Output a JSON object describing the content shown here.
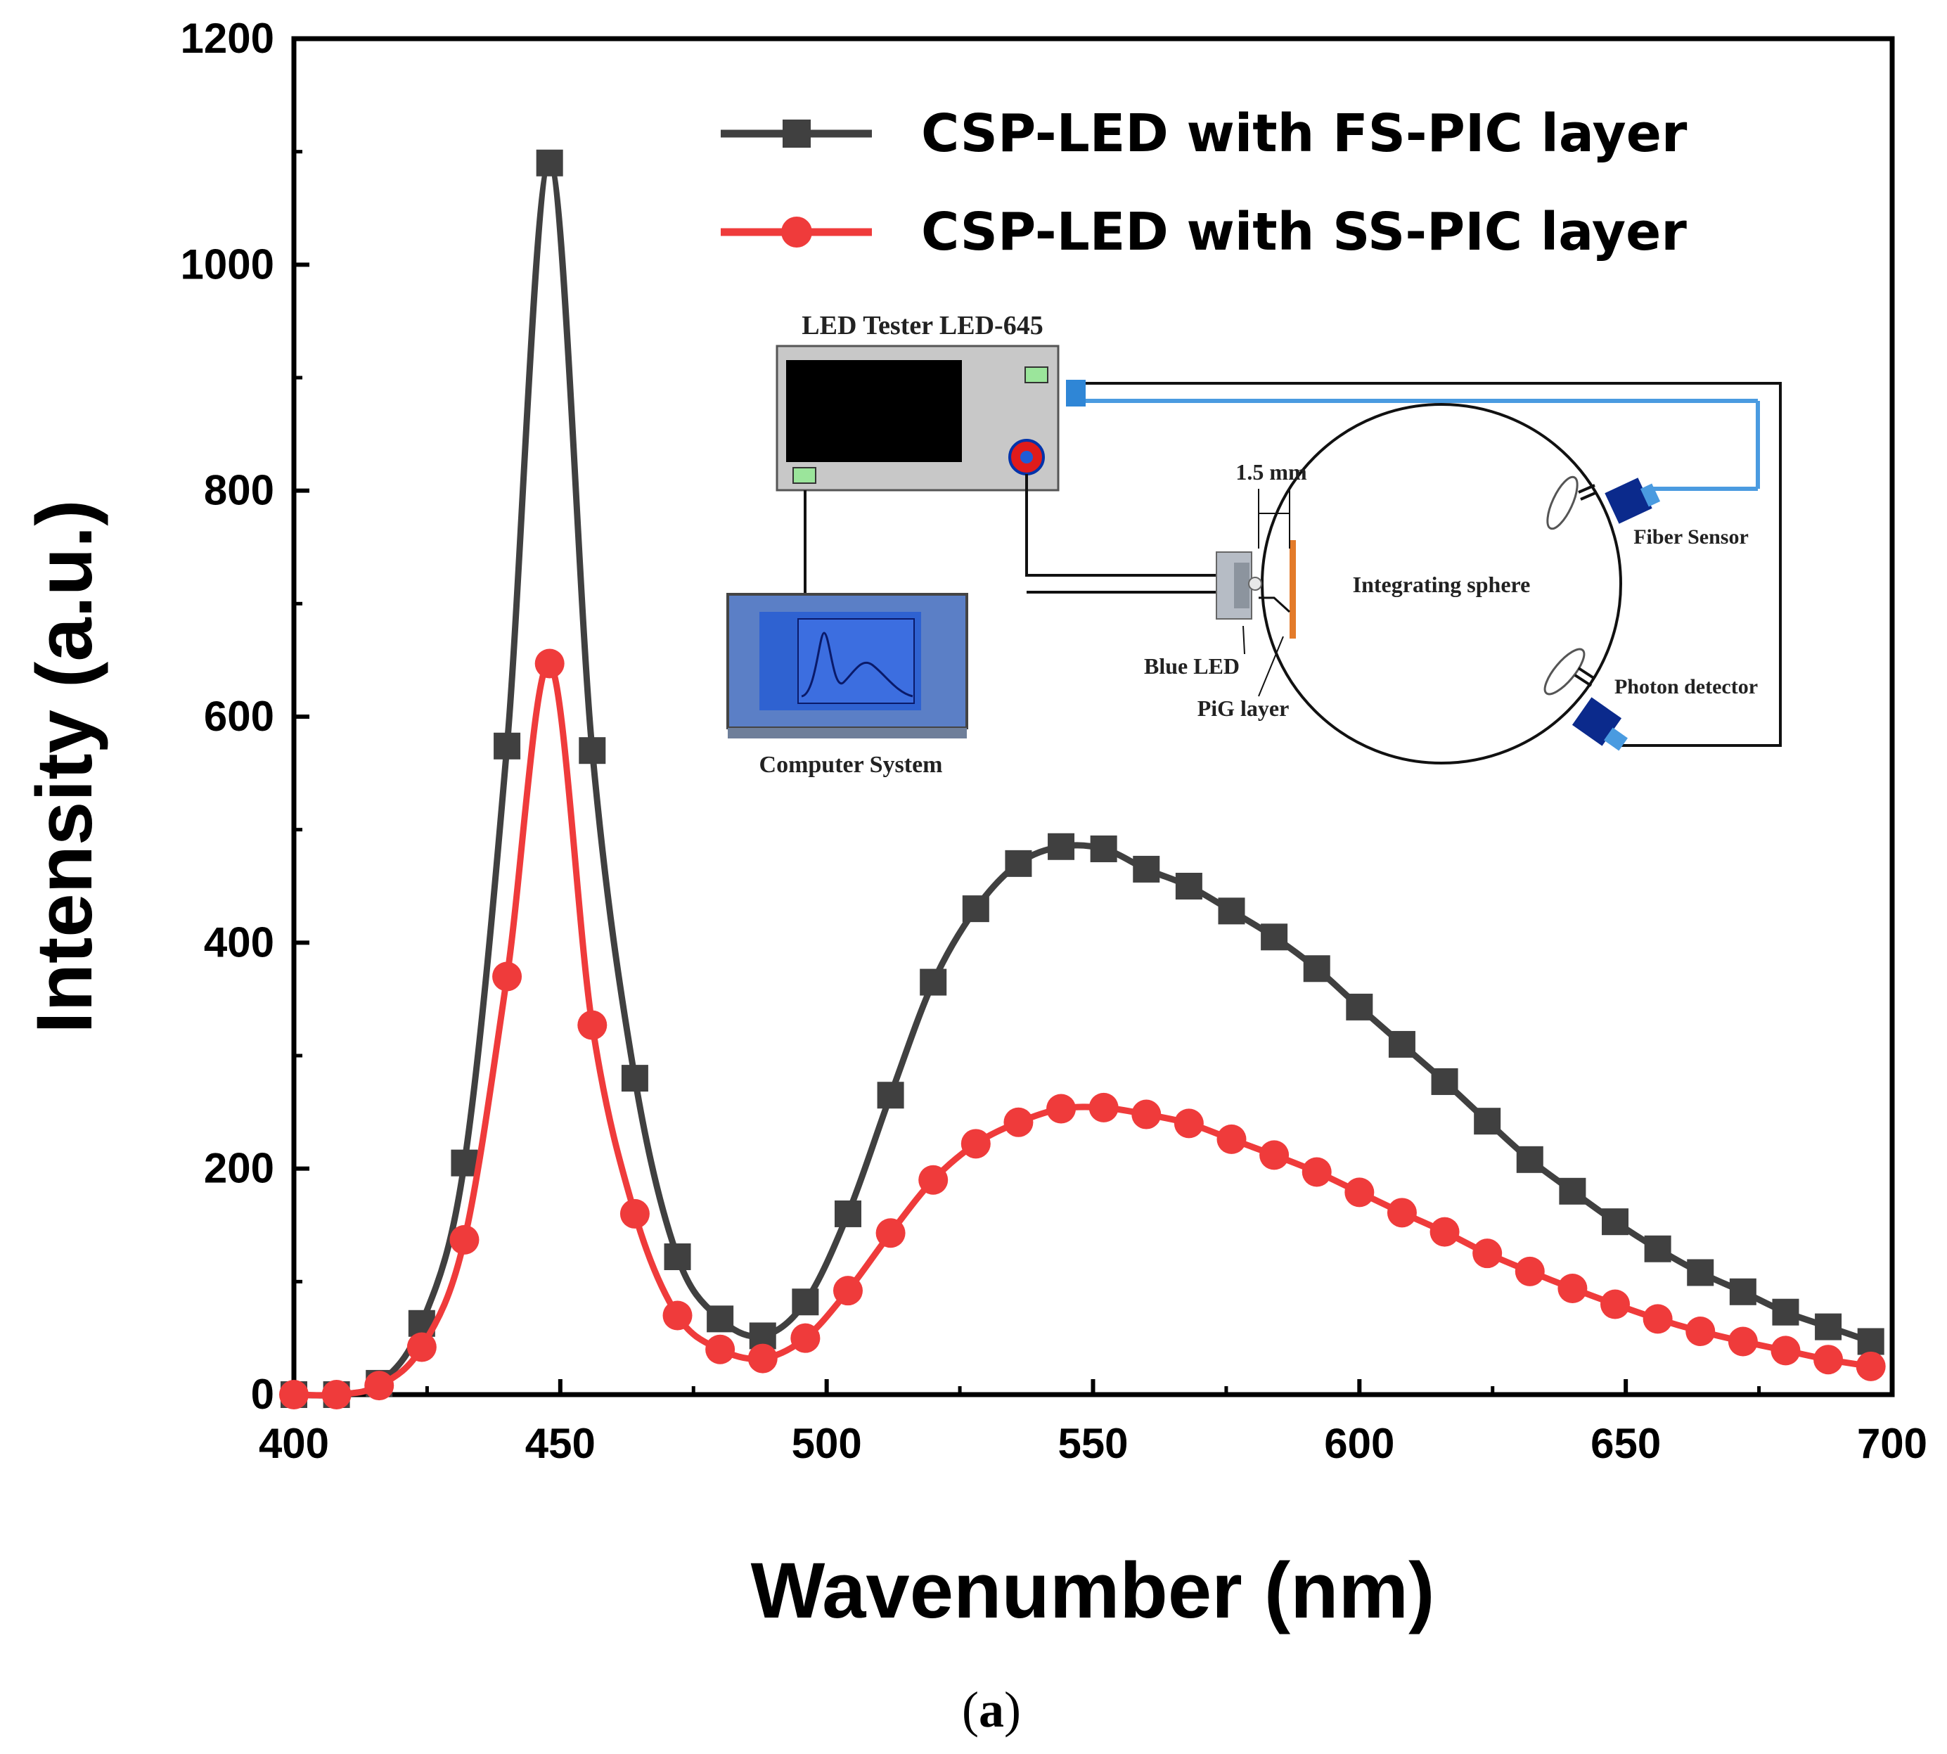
{
  "chart_data": {
    "type": "line",
    "xlabel": "Wavenumber (nm)",
    "ylabel": "Intensity (a.u.)",
    "xlim": [
      400,
      700
    ],
    "ylim": [
      0,
      1200
    ],
    "x_ticks": [
      400,
      450,
      500,
      550,
      600,
      650,
      700
    ],
    "y_ticks": [
      0,
      200,
      400,
      600,
      800,
      1000,
      1200
    ],
    "x_tick_labels": [
      "400",
      "450",
      "500",
      "550",
      "600",
      "650",
      "700"
    ],
    "y_tick_labels": [
      "0",
      "200",
      "400",
      "600",
      "800",
      "1000",
      "1200"
    ],
    "legend_position": "top-right",
    "series": [
      {
        "name": "CSP-LED with FS-PIC layer",
        "color": "#404040",
        "marker": "square",
        "x": [
          400,
          408,
          416,
          424,
          432,
          440,
          448,
          456,
          464,
          472,
          480,
          488,
          496,
          504,
          512,
          520,
          528,
          536,
          544,
          552,
          560,
          568,
          576,
          584,
          592,
          600,
          608,
          616,
          624,
          632,
          640,
          648,
          656,
          664,
          672,
          680,
          688,
          696
        ],
        "values": [
          0,
          0,
          10,
          63,
          205,
          574,
          1090,
          570,
          280,
          122,
          67,
          52,
          82,
          160,
          265,
          365,
          430,
          470,
          485,
          483,
          465,
          450,
          428,
          405,
          377,
          343,
          310,
          277,
          242,
          208,
          180,
          153,
          129,
          108,
          91,
          73,
          60,
          47
        ]
      },
      {
        "name": "CSP-LED with SS-PIC layer",
        "color": "#ef3b3b",
        "marker": "circle",
        "x": [
          400,
          408,
          416,
          424,
          432,
          440,
          448,
          456,
          464,
          472,
          480,
          488,
          496,
          504,
          512,
          520,
          528,
          536,
          544,
          552,
          560,
          568,
          576,
          584,
          592,
          600,
          608,
          616,
          624,
          632,
          640,
          648,
          656,
          664,
          672,
          680,
          688,
          696
        ],
        "values": [
          0,
          0,
          8,
          42,
          137,
          370,
          647,
          327,
          160,
          70,
          40,
          32,
          50,
          92,
          143,
          190,
          222,
          241,
          253,
          254,
          248,
          240,
          226,
          212,
          197,
          179,
          161,
          144,
          125,
          109,
          94,
          80,
          67,
          56,
          47,
          39,
          31,
          25
        ]
      }
    ]
  },
  "inset": {
    "tester_label": "LED Tester LED-645",
    "computer_label": "Computer System",
    "distance_label": "1.5 mm",
    "sphere_label": "Integrating sphere",
    "fiber_label": "Fiber Sensor",
    "photon_label": "Photon detector",
    "led_label": "Blue LED",
    "pig_label": "PiG layer"
  },
  "caption": {
    "open": "(",
    "letter": "a",
    "close": ")"
  }
}
